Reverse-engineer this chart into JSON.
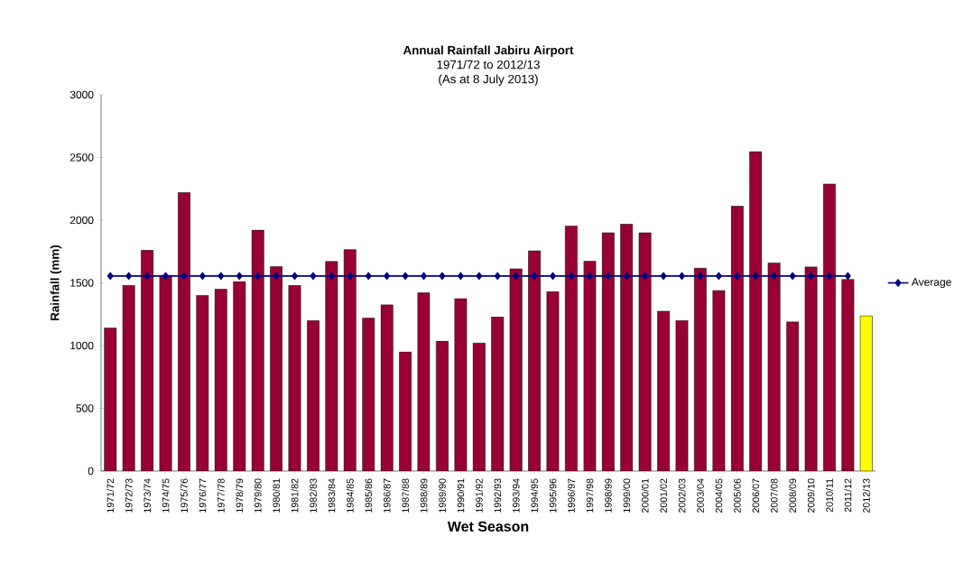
{
  "chart_data": {
    "type": "bar",
    "title": "Annual Rainfall Jabiru Airport",
    "subtitle": "1971/72 to 2012/13",
    "annotations": [
      "(As at 8 July 2013)"
    ],
    "xlabel": "Wet Season",
    "ylabel": "Rainfall (mm)",
    "categories": [
      "1971/72",
      "1972/73",
      "1973/74",
      "1974/75",
      "1975/76",
      "1976/77",
      "1977/78",
      "1978/79",
      "1979/80",
      "1980/81",
      "1981/82",
      "1982/83",
      "1983/84",
      "1984/85",
      "1985/86",
      "1986/87",
      "1987/88",
      "1988/89",
      "1989/90",
      "1990/91",
      "1991/92",
      "1992/93",
      "1993/94",
      "1994/95",
      "1995/96",
      "1996/97",
      "1997/98",
      "1998/99",
      "1999/00",
      "2000/01",
      "2001/02",
      "2002/03",
      "2003/04",
      "2004/05",
      "2005/06",
      "2006/07",
      "2007/08",
      "2008/09",
      "2009/10",
      "2010/11",
      "2011/12",
      "2012/13"
    ],
    "series": [
      {
        "colors": [
          "#990033",
          "#990033",
          "#990033",
          "#990033",
          "#990033",
          "#990033",
          "#990033",
          "#990033",
          "#990033",
          "#990033",
          "#990033",
          "#990033",
          "#990033",
          "#990033",
          "#990033",
          "#990033",
          "#990033",
          "#990033",
          "#990033",
          "#990033",
          "#990033",
          "#990033",
          "#990033",
          "#990033",
          "#990033",
          "#990033",
          "#990033",
          "#990033",
          "#990033",
          "#990033",
          "#990033",
          "#990033",
          "#990033",
          "#990033",
          "#990033",
          "#990033",
          "#990033",
          "#990033",
          "#990033",
          "#990033",
          "#990033",
          "#ffff00"
        ],
        "values": [
          1140,
          1480,
          1760,
          1560,
          2220,
          1400,
          1450,
          1510,
          1920,
          1630,
          1480,
          1200,
          1670,
          1765,
          1220,
          1325,
          950,
          1420,
          1035,
          1375,
          1020,
          1228,
          1612,
          1755,
          1430,
          1953,
          1672,
          1899,
          1968,
          1899,
          1274,
          1200,
          1617,
          1439,
          2111,
          2546,
          1659,
          1188,
          1627,
          2289,
          1528,
          1237
        ]
      },
      {
        "type": "line",
        "name": "Average",
        "color": "#000080",
        "values": [
          1555,
          1555,
          1555,
          1555,
          1555,
          1555,
          1555,
          1555,
          1555,
          1555,
          1555,
          1555,
          1555,
          1555,
          1555,
          1555,
          1555,
          1555,
          1555,
          1555,
          1555,
          1555,
          1555,
          1555,
          1555,
          1555,
          1555,
          1555,
          1555,
          1555,
          1555,
          1555,
          1555,
          1555,
          1555,
          1555,
          1555,
          1555,
          1555,
          1555,
          1555,
          null
        ]
      }
    ],
    "ylim": [
      0,
      3000
    ],
    "yticks": [
      0,
      500,
      1000,
      1500,
      2000,
      2500,
      3000
    ],
    "marker": "diamond",
    "legend": "right"
  }
}
